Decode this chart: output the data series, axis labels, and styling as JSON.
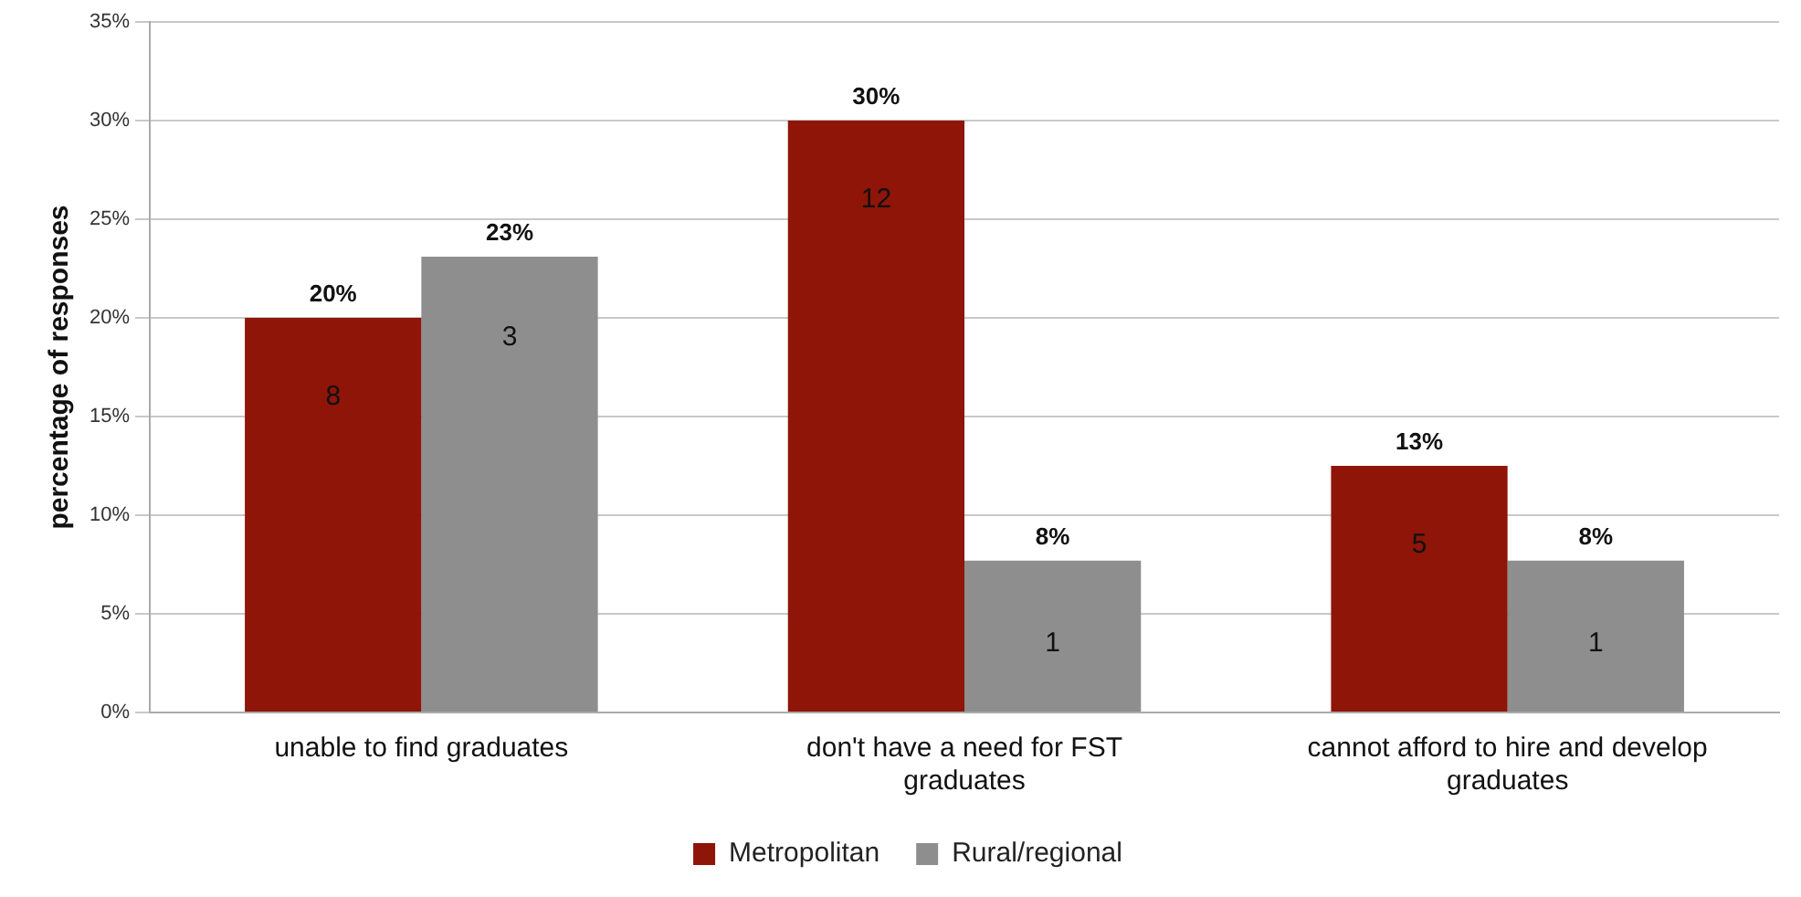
{
  "chart_data": {
    "type": "bar",
    "ylabel": "percentage of responses",
    "categories": [
      "unable to find graduates",
      "don't have a need for FST graduates",
      "cannot afford to hire and develop graduates"
    ],
    "series": [
      {
        "name": "Metropolitan",
        "color": "#8e1507",
        "values": [
          20,
          30,
          12.5
        ],
        "value_labels": [
          "20%",
          "30%",
          "13%"
        ]
      },
      {
        "name": "Rural/regional",
        "color": "#8e8e8e",
        "values": [
          23.1,
          7.7,
          7.7
        ],
        "value_labels": [
          "23%",
          "8%",
          "8%"
        ]
      }
    ],
    "annotations": [
      {
        "text": "8",
        "x": "unable to find graduates",
        "y": 16
      },
      {
        "text": "3",
        "x": "unable to find graduates",
        "y": 19
      },
      {
        "text": "12",
        "x": "don't have a need for FST graduates",
        "y": 26
      },
      {
        "text": "1",
        "x": "don't have a need for FST graduates",
        "y": 3.5
      },
      {
        "text": "5",
        "x": "cannot afford to hire and develop graduates",
        "y": 8.5
      },
      {
        "text": "1",
        "x": "cannot afford to hire and develop graduates",
        "y": 3.5
      }
    ],
    "ylim": [
      0,
      35
    ],
    "yticks": [
      {
        "value": 0,
        "label": "0%"
      },
      {
        "value": 5,
        "label": "5%"
      },
      {
        "value": 10,
        "label": "10%"
      },
      {
        "value": 15,
        "label": "15%"
      },
      {
        "value": 20,
        "label": "20%"
      },
      {
        "value": 25,
        "label": "25%"
      },
      {
        "value": 30,
        "label": "30%"
      },
      {
        "value": 35,
        "label": "35%"
      }
    ],
    "grid": "y",
    "legend": "bottom"
  }
}
